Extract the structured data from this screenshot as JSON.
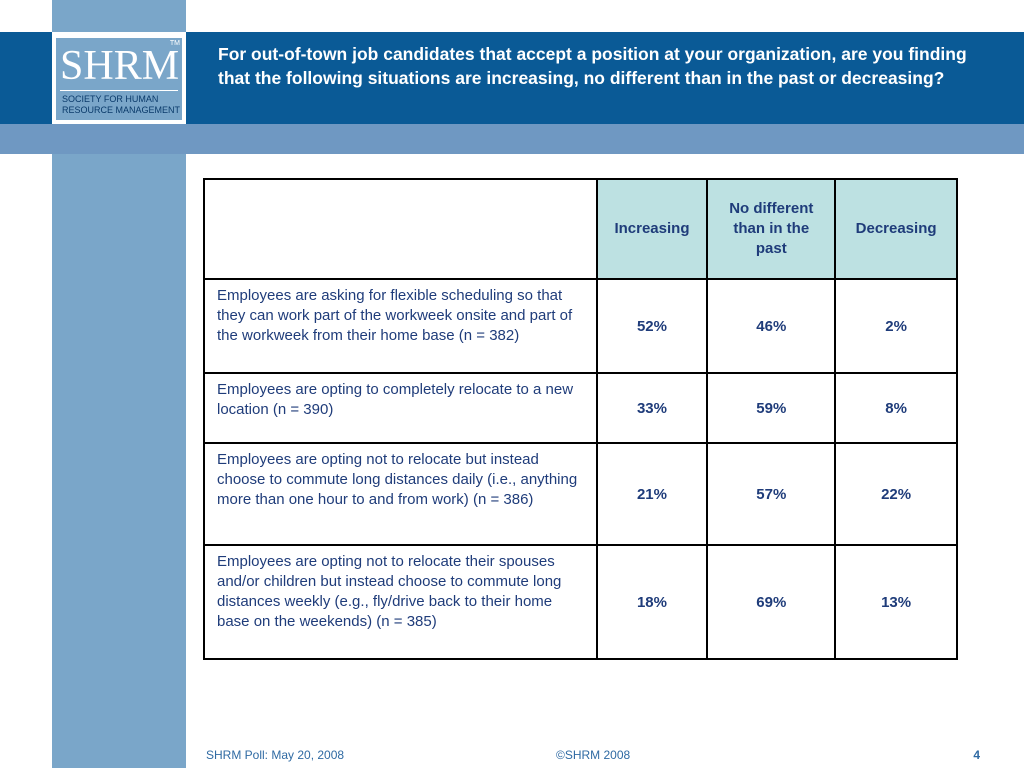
{
  "logo": {
    "letters": "SHRM",
    "tm": "TM",
    "subtitle": "Society for Human Resource Management"
  },
  "title": "For out-of-town job candidates that accept a position at your organization, are you finding that the following situations are increasing, no different than in the past or decreasing?",
  "table": {
    "headers": [
      "",
      "Increasing",
      "No different than in the past",
      "Decreasing"
    ],
    "rows": [
      {
        "label": "Employees are asking for flexible scheduling so that they can work part of the workweek onsite and part of the workweek from their home base (n = 382)",
        "increasing": "52%",
        "no_different": "46%",
        "decreasing": "2%"
      },
      {
        "label": "Employees are opting to completely relocate to a new location (n = 390)",
        "increasing": "33%",
        "no_different": "59%",
        "decreasing": "8%"
      },
      {
        "label": "Employees are opting not to relocate but instead choose to commute long distances daily (i.e., anything more than one hour to and from work) (n = 386)",
        "increasing": "21%",
        "no_different": "57%",
        "decreasing": "22%"
      },
      {
        "label": "Employees are opting not to relocate their spouses and/or children but instead choose to commute long distances weekly (e.g., fly/drive back to their home base on the weekends) (n = 385)",
        "increasing": "18%",
        "no_different": "69%",
        "decreasing": "13%"
      }
    ]
  },
  "footer": {
    "left": "SHRM Poll: May 20, 2008",
    "center": "©SHRM 2008",
    "page": "4"
  }
}
